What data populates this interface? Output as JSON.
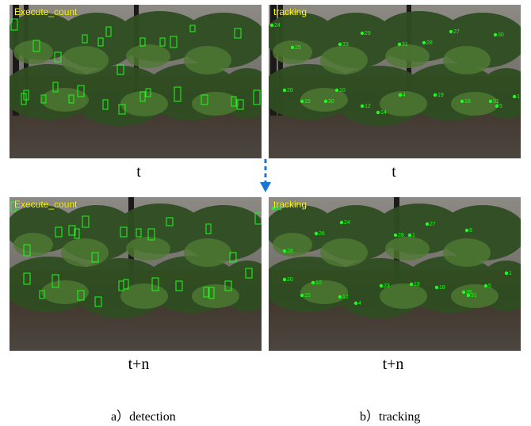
{
  "panels": {
    "tl": {
      "overlay": "Execute_count"
    },
    "tr": {
      "overlay": "tracking"
    },
    "bl": {
      "overlay": "Execute_count"
    },
    "br": {
      "overlay": "tracking"
    }
  },
  "time_labels": {
    "top_left": "t",
    "top_right": "t",
    "bottom_left": "t+n",
    "bottom_right": "t+n"
  },
  "subcaptions": {
    "left": "a）detection",
    "right": "b）tracking"
  },
  "track_ids": {
    "tr": [
      "24",
      "25",
      "33",
      "29",
      "31",
      "28",
      "27",
      "30",
      "20",
      "15",
      "30",
      "10",
      "12",
      "14",
      "4",
      "19",
      "18",
      "31",
      "5",
      "1"
    ],
    "br": [
      "31",
      "28",
      "26",
      "24",
      "28",
      "1",
      "27",
      "9",
      "20",
      "10",
      "15",
      "12",
      "4",
      "23",
      "19",
      "18",
      "35",
      "31",
      "5",
      "1"
    ]
  },
  "colors": {
    "box": "#18ff18",
    "marker": "#ff2a2a",
    "overlay": "#ffff00",
    "arrow": "#1976d2"
  }
}
